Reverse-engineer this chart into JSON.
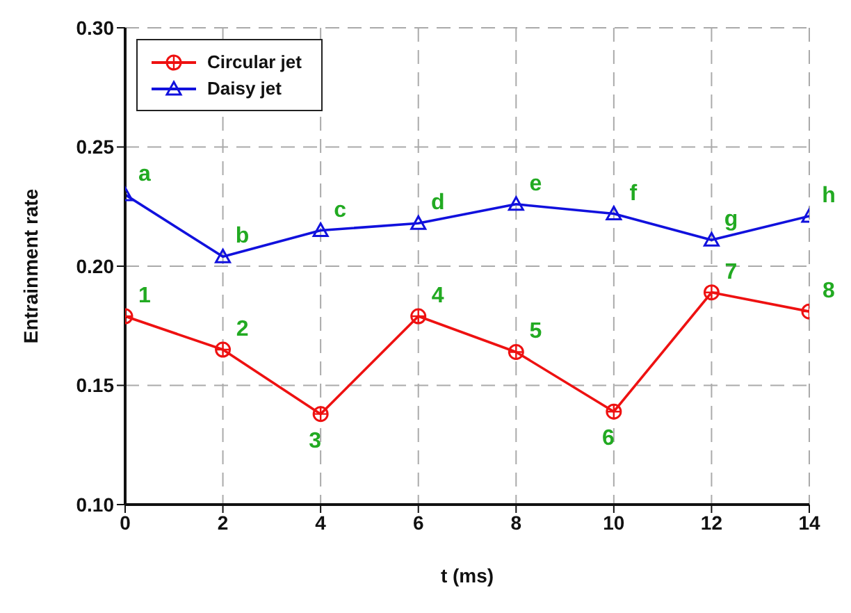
{
  "chart_data": {
    "type": "line",
    "xlabel": "t (ms)",
    "ylabel": "Entrainment rate",
    "x": [
      0,
      2,
      4,
      6,
      8,
      10,
      12,
      14
    ],
    "series": [
      {
        "name": "Circular jet",
        "color": "#ee1111",
        "marker": "circle",
        "values": [
          0.179,
          0.165,
          0.138,
          0.179,
          0.164,
          0.139,
          0.189,
          0.181
        ]
      },
      {
        "name": "Daisy jet",
        "color": "#1111dd",
        "marker": "triangle",
        "values": [
          0.23,
          0.204,
          0.215,
          0.218,
          0.226,
          0.222,
          0.211,
          0.221
        ]
      }
    ],
    "xlim": [
      0,
      14
    ],
    "xticks": [
      0,
      2,
      4,
      6,
      8,
      10,
      12,
      14
    ],
    "ylim": [
      0.1,
      0.3
    ],
    "yticks": [
      {
        "value": 0.1,
        "label": "0.10"
      },
      0.15,
      {
        "value": 0.2,
        "label": "0.20"
      },
      0.25,
      {
        "value": 0.3,
        "label": "0.30"
      }
    ],
    "grid": true,
    "legend": "top left",
    "line_style": "solid",
    "annotations": [
      {
        "text": "a",
        "x": 0,
        "y": 0.23
      },
      {
        "text": "b",
        "x": 2,
        "y": 0.204
      },
      {
        "text": "c",
        "x": 4,
        "y": 0.215
      },
      {
        "text": "d",
        "x": 6,
        "y": 0.218
      },
      {
        "text": "e",
        "x": 8,
        "y": 0.226
      },
      {
        "text": "f",
        "x": 10,
        "y": 0.222
      },
      {
        "text": "g",
        "x": 12,
        "y": 0.211
      },
      {
        "text": "h",
        "x": 14,
        "y": 0.221
      },
      {
        "text": "1",
        "x": 0,
        "y": 0.179
      },
      {
        "text": "2",
        "x": 2,
        "y": 0.165
      },
      {
        "text": "3",
        "x": 4,
        "y": 0.138
      },
      {
        "text": "4",
        "x": 6,
        "y": 0.179
      },
      {
        "text": "5",
        "x": 8,
        "y": 0.164
      },
      {
        "text": "6",
        "x": 10,
        "y": 0.139
      },
      {
        "text": "7",
        "x": 12,
        "y": 0.189
      },
      {
        "text": "8",
        "x": 14,
        "y": 0.181
      }
    ]
  }
}
